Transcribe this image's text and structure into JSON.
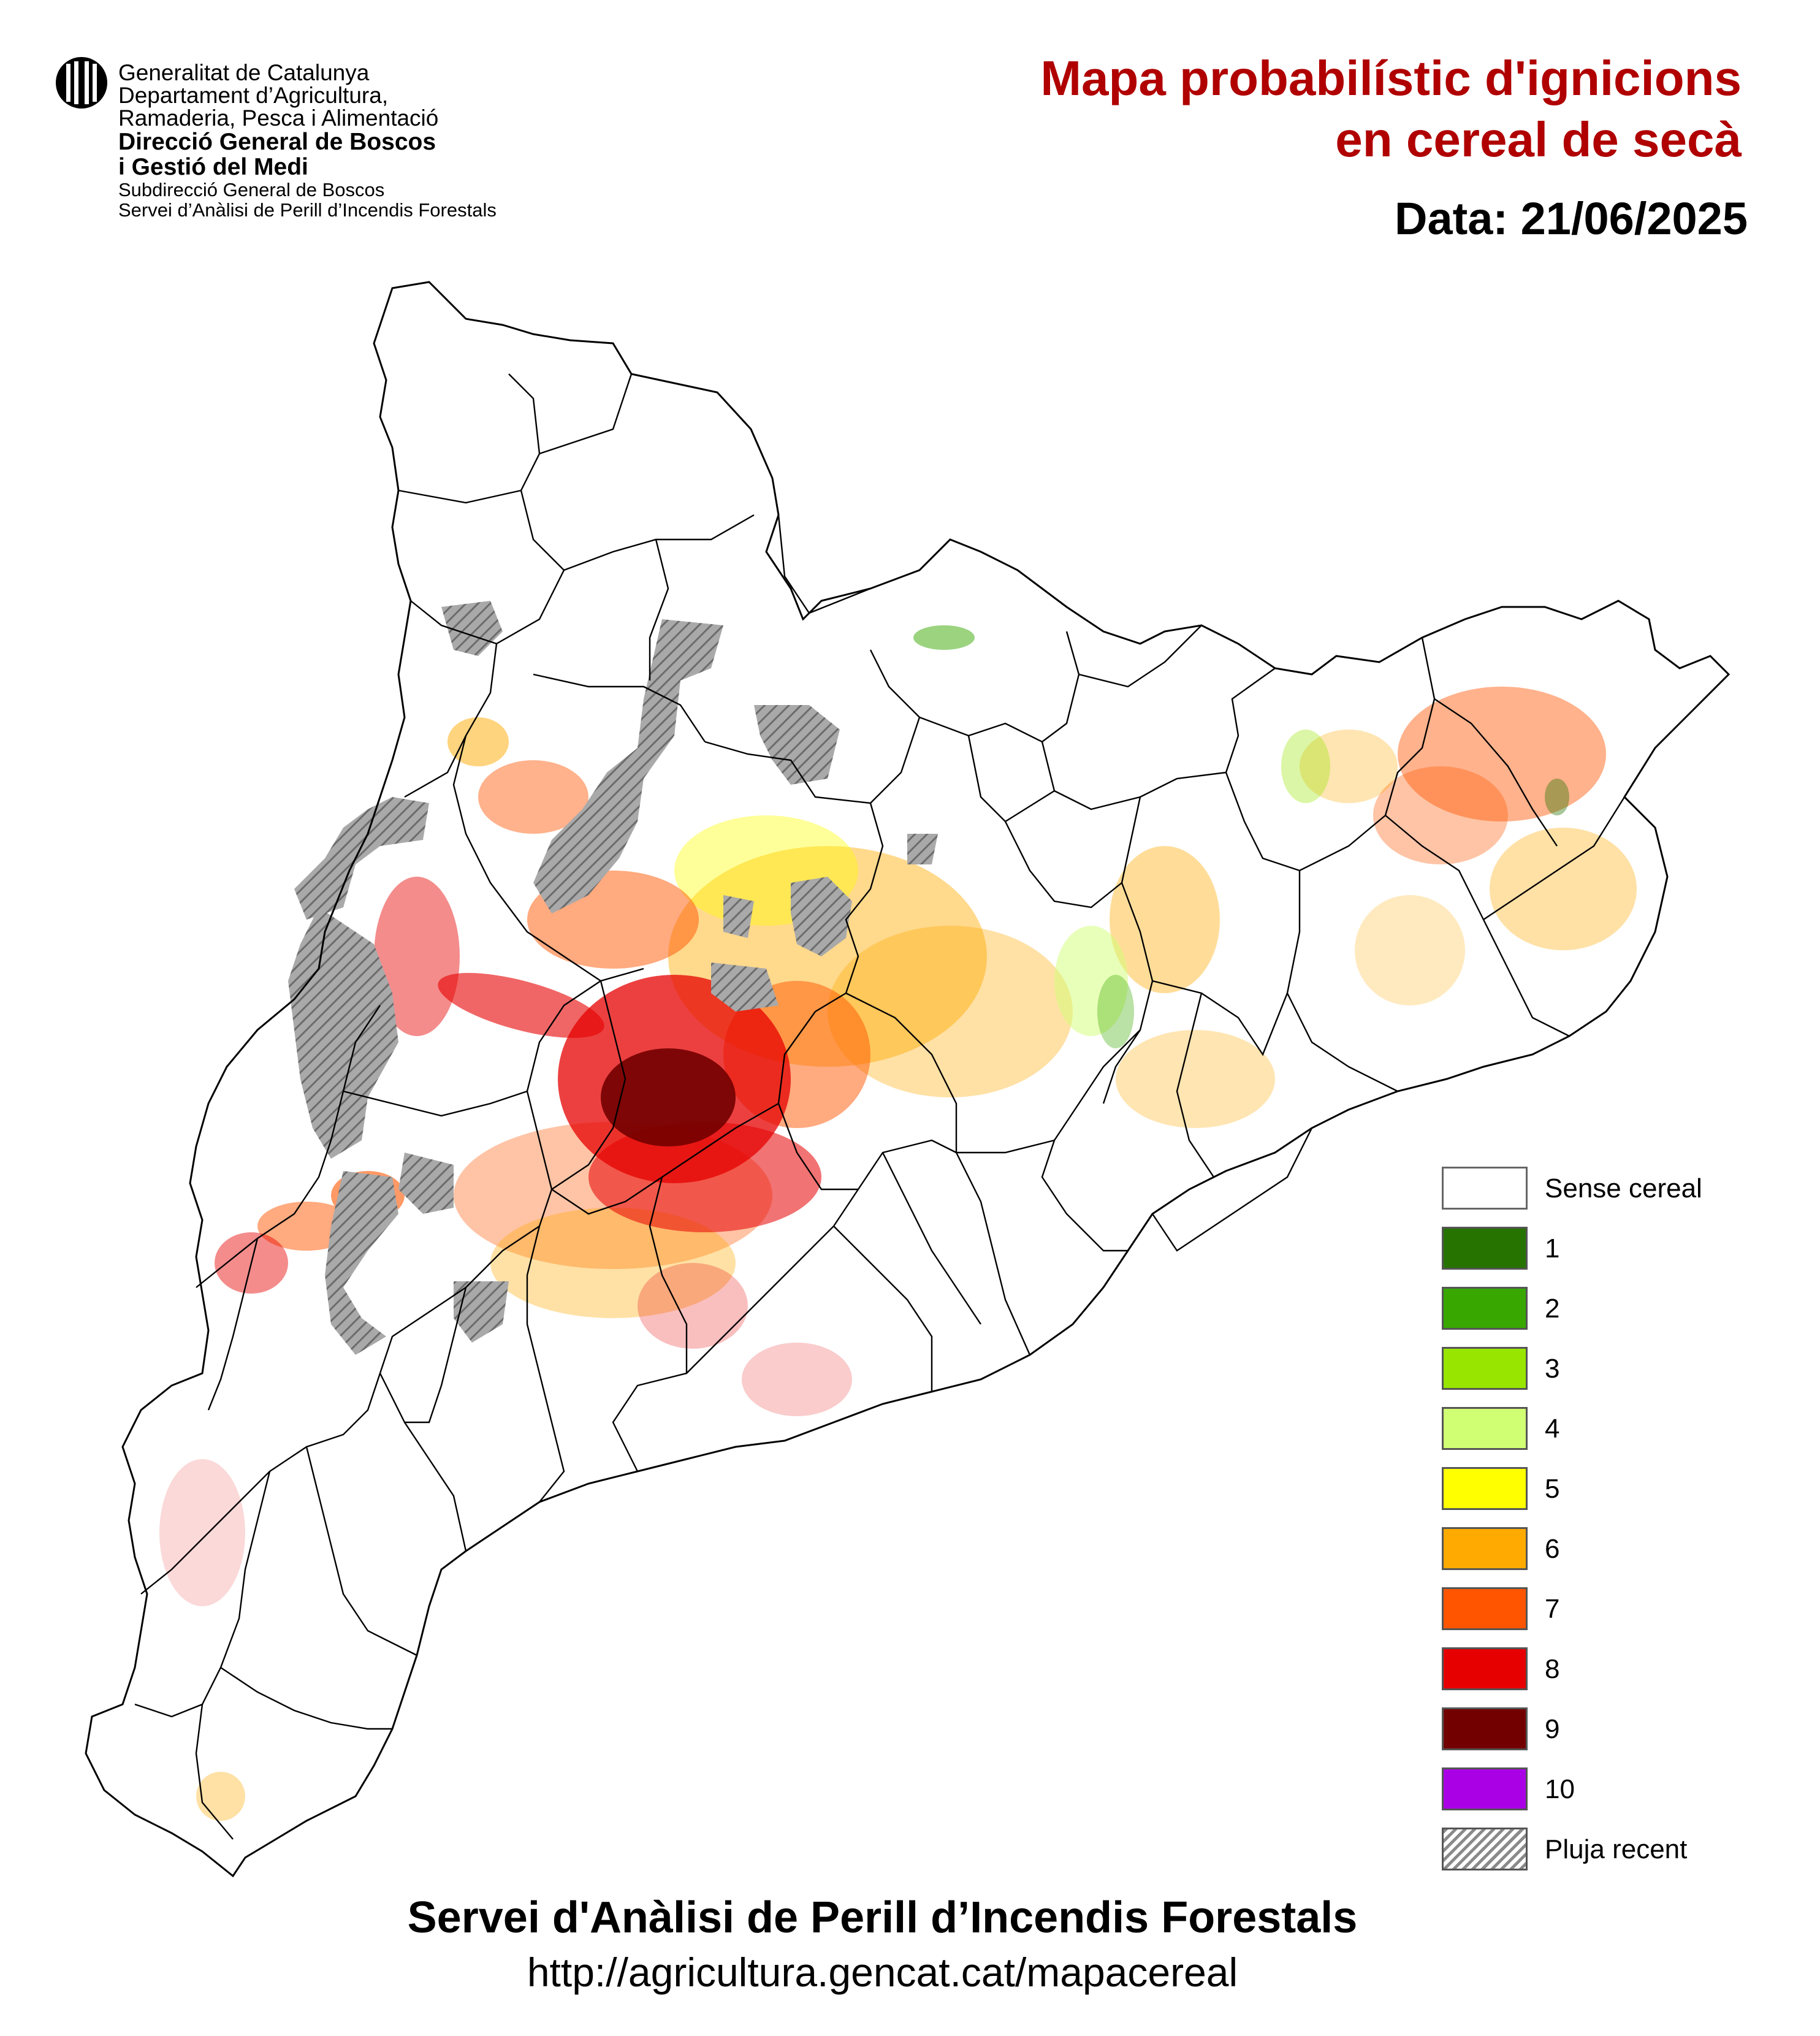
{
  "header": {
    "org_lines": [
      "Generalitat de Catalunya",
      "Departament d’Agricultura,",
      "Ramaderia, Pesca i Alimentació"
    ],
    "direction_lines": [
      "Direcció General de Boscos",
      "i Gestió del Medi"
    ],
    "service_lines": [
      "Subdirecció General de Boscos",
      "Servei d’Anàlisi de Perill d’Incendis Forestals"
    ],
    "logo_icon": "generalitat-coat-of-arms-icon"
  },
  "title": {
    "line1": "Mapa probabilístic d'ignicions",
    "line2": "en cereal de secà",
    "color": "#b00000"
  },
  "date": {
    "text": "Data: 21/06/2025"
  },
  "map": {
    "region": "Catalunya"
  },
  "legend": {
    "items": [
      {
        "label": "Sense cereal",
        "color": "#ffffff"
      },
      {
        "label": "1",
        "color": "#267300"
      },
      {
        "label": "2",
        "color": "#38a800"
      },
      {
        "label": "3",
        "color": "#98e600"
      },
      {
        "label": "4",
        "color": "#d1ff73"
      },
      {
        "label": "5",
        "color": "#ffff00"
      },
      {
        "label": "6",
        "color": "#ffaa00"
      },
      {
        "label": "7",
        "color": "#ff5500"
      },
      {
        "label": "8",
        "color": "#e60000"
      },
      {
        "label": "9",
        "color": "#730000"
      },
      {
        "label": "10",
        "color": "#a900e6"
      },
      {
        "label": "Pluja recent",
        "color": "hatch"
      }
    ]
  },
  "footer": {
    "title": "Servei d'Anàlisi de Perill d’Incendis Forestals",
    "url": "http://agricultura.gencat.cat/mapacereal"
  }
}
